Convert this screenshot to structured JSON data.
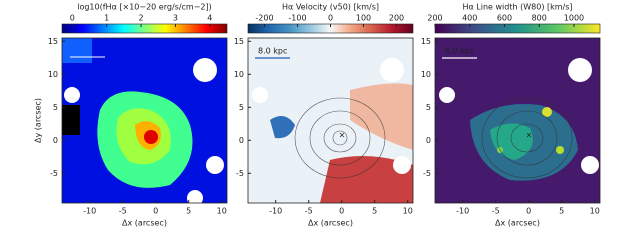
{
  "chart_data": [
    {
      "type": "heatmap",
      "colorbar_label": "log10(fHα [×10−20 erg/s/cm−2])",
      "clim": [
        -0.3,
        4.5
      ],
      "cticks": [
        0,
        1,
        2,
        3,
        4
      ],
      "colormap": [
        "#00007f",
        "#0000ff",
        "#007fff",
        "#00ffff",
        "#7fff7f",
        "#ffff00",
        "#ff7f00",
        "#ff0000",
        "#7f0000"
      ],
      "xlabel": "Δx (arcsec)",
      "ylabel": "Δy (arcsec)",
      "xlim": [
        -14.2,
        10.8
      ],
      "xticks": [
        -10,
        -5,
        0,
        5,
        10
      ],
      "ylim": [
        -9.5,
        15.5
      ],
      "yticks": [
        -5,
        0,
        5,
        10,
        15
      ]
    },
    {
      "type": "heatmap",
      "colorbar_label": "Hα Velocity (v50) [km/s]",
      "clim": [
        -250,
        250
      ],
      "cticks": [
        -200,
        -100,
        0,
        100,
        200
      ],
      "colormap": [
        "#053061",
        "#2166ac",
        "#4393c3",
        "#92c5de",
        "#f7f7f7",
        "#f4a582",
        "#d6604d",
        "#b2182b",
        "#67001f"
      ],
      "xlabel": "Δx (arcsec)",
      "annotation": "8.0 kpc",
      "xlim": [
        -14.2,
        10.8
      ],
      "xticks": [
        -10,
        -5,
        0,
        5,
        10
      ],
      "ylim": [
        -9.5,
        15.5
      ],
      "yticks": [
        -5,
        0,
        5,
        10,
        15
      ]
    },
    {
      "type": "heatmap",
      "colorbar_label": "Hα Line width (W80) [km/s]",
      "clim": [
        200,
        1150
      ],
      "cticks": [
        200,
        400,
        600,
        800,
        1000
      ],
      "colormap": [
        "#440154",
        "#3b528b",
        "#21918c",
        "#5ec962",
        "#fde725"
      ],
      "xlabel": "Δx (arcsec)",
      "annotation": "8.0 kpc",
      "xlim": [
        -14.2,
        10.8
      ],
      "xticks": [
        -10,
        -5,
        0,
        5,
        10
      ],
      "ylim": [
        -9.5,
        15.5
      ],
      "yticks": [
        -5,
        0,
        5,
        10,
        15
      ]
    }
  ]
}
